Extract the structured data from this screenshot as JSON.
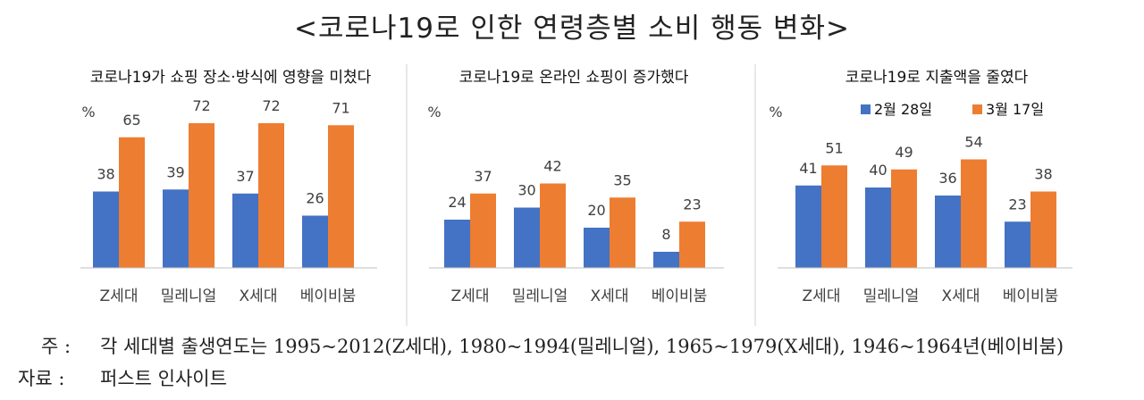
{
  "title": "<코로나19로 인한 연령층별 소비 행동 변화>",
  "legend": {
    "placement": "top-right"
  },
  "colors": {
    "series1": "#4472c4",
    "series2": "#ed7d31",
    "axis": "#bfbfbf",
    "divider": "#d0d0d0",
    "text": "#404040"
  },
  "chart_data": [
    {
      "type": "bar",
      "title": "코로나19가 쇼핑 장소·방식에 영향을 미쳤다",
      "unit": "%",
      "categories": [
        "Z세대",
        "밀레니얼",
        "X세대",
        "베이비붐"
      ],
      "series": [
        {
          "name": "2월 28일",
          "values": [
            38,
            39,
            37,
            26
          ]
        },
        {
          "name": "3월 17일",
          "values": [
            65,
            72,
            72,
            71
          ]
        }
      ],
      "ylim": [
        0,
        80
      ],
      "grid": false
    },
    {
      "type": "bar",
      "title": "코로나19로 온라인 쇼핑이 증가했다",
      "unit": "%",
      "categories": [
        "Z세대",
        "밀레니얼",
        "X세대",
        "베이비붐"
      ],
      "series": [
        {
          "name": "2월 28일",
          "values": [
            24,
            30,
            20,
            8
          ]
        },
        {
          "name": "3월 17일",
          "values": [
            37,
            42,
            35,
            23
          ]
        }
      ],
      "ylim": [
        0,
        80
      ],
      "grid": false
    },
    {
      "type": "bar",
      "title": "코로나19로 지출액을 줄였다",
      "unit": "%",
      "categories": [
        "Z세대",
        "밀레니얼",
        "X세대",
        "베이비붐"
      ],
      "series": [
        {
          "name": "2월 28일",
          "values": [
            41,
            40,
            36,
            23
          ]
        },
        {
          "name": "3월 17일",
          "values": [
            51,
            49,
            54,
            38
          ]
        }
      ],
      "ylim": [
        0,
        80
      ],
      "grid": false
    }
  ],
  "footnote": {
    "label": "주 :",
    "text": "각 세대별 출생연도는 1995~2012(Z세대), 1980~1994(밀레니얼), 1965~1979(X세대), 1946~1964년(베이비붐)"
  },
  "source": {
    "label": "자료 :",
    "text": "퍼스트 인사이트"
  }
}
